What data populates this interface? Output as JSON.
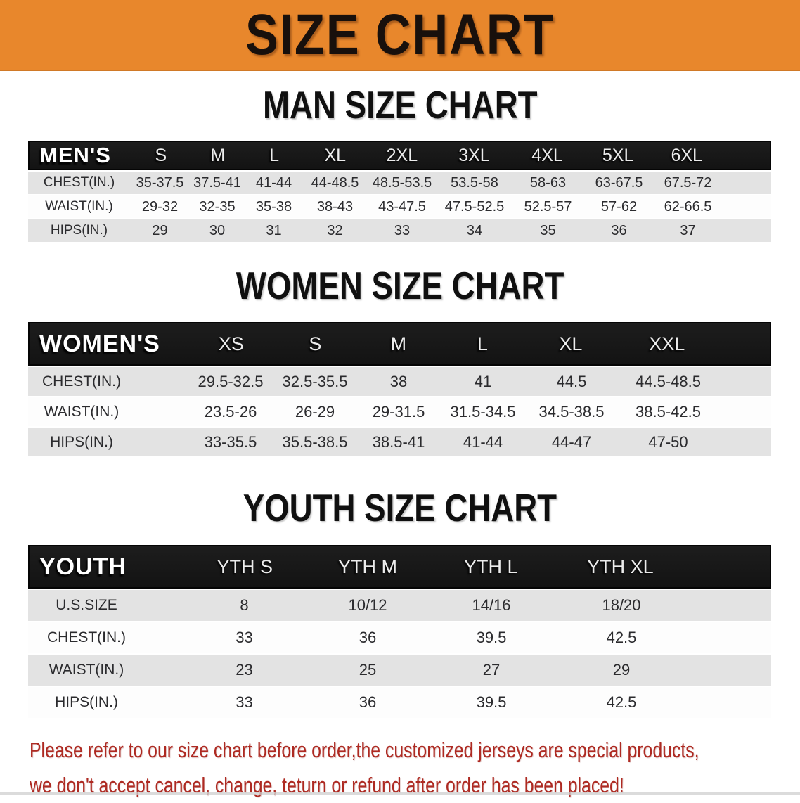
{
  "banner": {
    "title": "SIZE CHART",
    "background": "#E8872C",
    "text_color": "#18100C"
  },
  "chart_data": [
    {
      "type": "table",
      "title": "MAN SIZE CHART",
      "header": {
        "label": "MEN'S",
        "sizes": [
          "S",
          "M",
          "L",
          "XL",
          "2XL",
          "3XL",
          "4XL",
          "5XL",
          "6XL"
        ]
      },
      "rows": [
        {
          "label": "CHEST(IN.)",
          "values": [
            "35-37.5",
            "37.5-41",
            "41-44",
            "44-48.5",
            "48.5-53.5",
            "53.5-58",
            "58-63",
            "63-67.5",
            "67.5-72"
          ]
        },
        {
          "label": "WAIST(IN.)",
          "values": [
            "29-32",
            "32-35",
            "35-38",
            "38-43",
            "43-47.5",
            "47.5-52.5",
            "52.5-57",
            "57-62",
            "62-66.5"
          ]
        },
        {
          "label": "HIPS(IN.)",
          "values": [
            "29",
            "30",
            "31",
            "32",
            "33",
            "34",
            "35",
            "36",
            "37"
          ]
        }
      ]
    },
    {
      "type": "table",
      "title": "WOMEN SIZE CHART",
      "header": {
        "label": "WOMEN'S",
        "sizes": [
          "XS",
          "S",
          "M",
          "L",
          "XL",
          "XXL"
        ]
      },
      "rows": [
        {
          "label": "CHEST(IN.)",
          "values": [
            "29.5-32.5",
            "32.5-35.5",
            "38",
            "41",
            "44.5",
            "44.5-48.5"
          ]
        },
        {
          "label": "WAIST(IN.)",
          "values": [
            "23.5-26",
            "26-29",
            "29-31.5",
            "31.5-34.5",
            "34.5-38.5",
            "38.5-42.5"
          ]
        },
        {
          "label": "HIPS(IN.)",
          "values": [
            "33-35.5",
            "35.5-38.5",
            "38.5-41",
            "41-44",
            "44-47",
            "47-50"
          ]
        }
      ]
    },
    {
      "type": "table",
      "title": "YOUTH SIZE CHART",
      "header": {
        "label": "YOUTH",
        "sizes": [
          "YTH S",
          "YTH M",
          "YTH L",
          "YTH XL"
        ]
      },
      "rows": [
        {
          "label": "U.S.SIZE",
          "values": [
            "8",
            "10/12",
            "14/16",
            "18/20"
          ]
        },
        {
          "label": "CHEST(IN.)",
          "values": [
            "33",
            "36",
            "39.5",
            "42.5"
          ]
        },
        {
          "label": "WAIST(IN.)",
          "values": [
            "23",
            "25",
            "27",
            "29"
          ]
        },
        {
          "label": "HIPS(IN.)",
          "values": [
            "33",
            "36",
            "39.5",
            "42.5"
          ]
        }
      ]
    }
  ],
  "footer": {
    "line1": "Please refer to our size chart before order,the customized jerseys are special products,",
    "line2": "we don't accept cancel, change, teturn or refund after order has been placed!",
    "text_color": "#AE2A22"
  },
  "colors": {
    "banner_orange": "#E8872C",
    "table_header_black": "#181818",
    "row_gray": "#E3E3E3",
    "row_white": "#FDFDFD",
    "note_red": "#AE2A22"
  }
}
